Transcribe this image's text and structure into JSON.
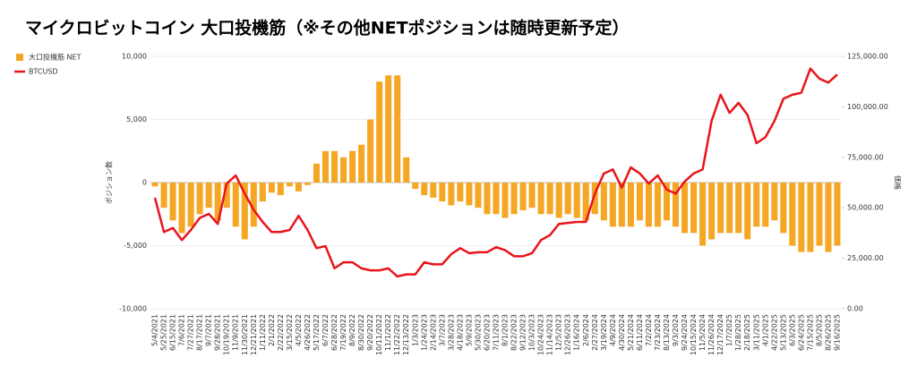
{
  "chart_data": {
    "type": "bar-line",
    "title": "マイクロビットコイン 大口投機筋（※その他NETポジションは随時更新予定）",
    "y_label": "ポジション数",
    "y2_label": "価格",
    "categories": [
      "5/4/2021",
      "5/25/2021",
      "6/15/2021",
      "7/6/2021",
      "7/27/2021",
      "8/17/2021",
      "9/7/2021",
      "9/28/2021",
      "10/19/2021",
      "11/9/2021",
      "11/30/2021",
      "12/21/2021",
      "1/11/2022",
      "2/1/2022",
      "2/22/2022",
      "3/15/2022",
      "4/5/2022",
      "4/26/2022",
      "5/17/2022",
      "6/7/2022",
      "6/28/2022",
      "7/19/2022",
      "8/9/2022",
      "8/30/2022",
      "9/20/2022",
      "10/11/2022",
      "11/1/2022",
      "11/22/2022",
      "12/13/2022",
      "1/3/2023",
      "1/24/2023",
      "2/14/2023",
      "3/7/2023",
      "3/28/2023",
      "4/18/2023",
      "5/9/2023",
      "5/30/2023",
      "6/20/2023",
      "7/11/2023",
      "8/1/2023",
      "8/22/2023",
      "9/12/2023",
      "10/3/2023",
      "10/24/2023",
      "11/14/2023",
      "12/5/2023",
      "12/26/2023",
      "1/16/2024",
      "2/6/2024",
      "2/27/2024",
      "3/19/2024",
      "4/9/2024",
      "4/30/2024",
      "5/21/2024",
      "6/11/2024",
      "7/2/2024",
      "7/23/2024",
      "8/13/2024",
      "9/3/2024",
      "9/24/2024",
      "10/15/2024",
      "11/5/2024",
      "11/26/2024",
      "12/17/2024",
      "1/7/2025",
      "1/28/2025",
      "2/18/2025",
      "3/11/2025",
      "4/1/2025",
      "4/22/2025",
      "5/13/2025",
      "6/3/2025",
      "6/24/2025",
      "7/15/2025",
      "8/5/2025",
      "8/26/2025",
      "9/16/2025"
    ],
    "series": [
      {
        "name": "大口投機筋  NET",
        "type": "bar",
        "color": "#f5a623",
        "values": [
          -300,
          -2000,
          -3000,
          -4000,
          -3500,
          -2500,
          -2000,
          -3000,
          -2000,
          -3500,
          -4500,
          -3500,
          -1500,
          -800,
          -1000,
          -300,
          -700,
          -200,
          1500,
          2500,
          2500,
          2000,
          2500,
          3000,
          5000,
          8000,
          8500,
          8500,
          2000,
          -500,
          -1000,
          -1200,
          -1500,
          -1800,
          -1500,
          -1800,
          -2000,
          -2500,
          -2500,
          -2800,
          -2500,
          -2200,
          -2000,
          -2500,
          -2500,
          -2800,
          -2500,
          -2800,
          -3000,
          -2500,
          -3000,
          -3500,
          -3500,
          -3500,
          -3000,
          -3500,
          -3500,
          -3000,
          -3500,
          -4000,
          -4000,
          -5000,
          -4500,
          -4000,
          -4000,
          -4000,
          -4500,
          -3500,
          -3500,
          -3000,
          -4000,
          -5000,
          -5500,
          -5500,
          -5000,
          -5500,
          -5000
        ]
      },
      {
        "name": "BTCUSD",
        "type": "line",
        "axis": "y2",
        "color": "#e8141c",
        "values": [
          55000,
          38000,
          40000,
          34000,
          39000,
          45000,
          47000,
          42000,
          62000,
          66000,
          57000,
          49000,
          43000,
          38000,
          38000,
          39000,
          46000,
          39000,
          30000,
          31000,
          20000,
          23000,
          23000,
          20000,
          19000,
          19000,
          20000,
          16000,
          17000,
          17000,
          23000,
          22000,
          22000,
          27000,
          30000,
          27500,
          28000,
          28000,
          30500,
          29000,
          26000,
          26000,
          27500,
          34000,
          36500,
          42000,
          42500,
          43000,
          43000,
          57000,
          67000,
          69000,
          60000,
          70000,
          67000,
          62000,
          66000,
          59000,
          57000,
          63000,
          67000,
          69000,
          93000,
          106000,
          97000,
          102000,
          96000,
          82000,
          85000,
          93000,
          104000,
          106000,
          107000,
          119000,
          114000,
          112000,
          116000
        ]
      }
    ],
    "ylim": [
      -10000,
      10000
    ],
    "yticks": [
      {
        "value": -10000,
        "label": "-10,000"
      },
      {
        "value": -5000,
        "label": "-5,000"
      },
      0,
      {
        "value": 5000,
        "label": "5,000"
      },
      {
        "value": 10000,
        "label": "10,000"
      }
    ],
    "y2lim": [
      0,
      125000
    ],
    "y2ticks": [
      {
        "value": 0,
        "label": "0.00"
      },
      {
        "value": 25000,
        "label": "25,000.00"
      },
      {
        "value": 50000,
        "label": "50,000.00"
      },
      {
        "value": 75000,
        "label": "75,000.00"
      },
      {
        "value": 100000,
        "label": "100,000.00"
      },
      {
        "value": 125000,
        "label": "125,000.00"
      }
    ],
    "grid": true,
    "legend": "top-left"
  }
}
